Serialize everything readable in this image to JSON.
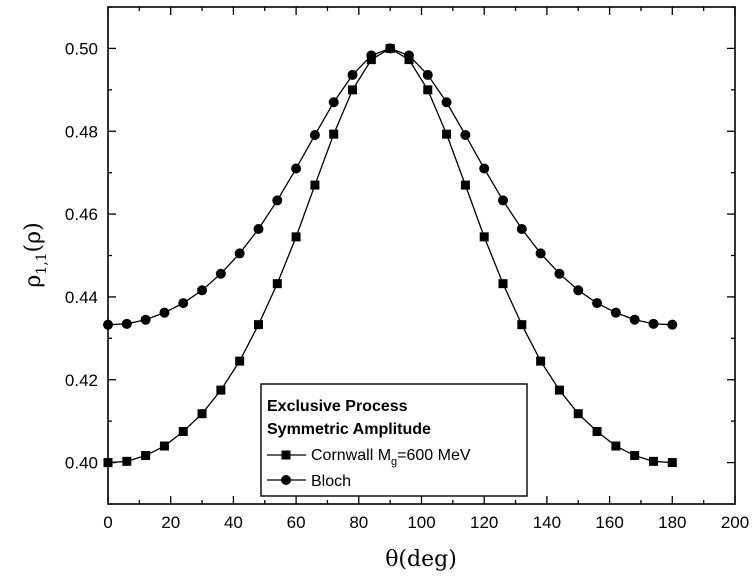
{
  "chart_data": {
    "type": "line",
    "xlabel": "θ(deg)",
    "ylabel": "ρ1,1(ρ)",
    "ylabel_parts": {
      "main": "ρ",
      "sub": "1,1",
      "rest": "(ρ)"
    },
    "xlim": [
      0,
      200
    ],
    "ylim": [
      0.39,
      0.51
    ],
    "xticks": [
      0,
      20,
      40,
      60,
      80,
      100,
      120,
      140,
      160,
      180,
      200
    ],
    "xtick_labels": [
      "0",
      "20",
      "40",
      "60",
      "80",
      "100",
      "120",
      "140",
      "160",
      "180",
      "200"
    ],
    "yticks": [
      0.4,
      0.42,
      0.44,
      0.46,
      0.48,
      0.5
    ],
    "ytick_labels": [
      "0.40",
      "0.42",
      "0.44",
      "0.46",
      "0.48",
      "0.50"
    ],
    "grid": false,
    "legend_placement": "bottom-center",
    "legend_header": [
      "Exclusive Process",
      "Symmetric Amplitude"
    ],
    "x": [
      0,
      6,
      12,
      18,
      24,
      30,
      36,
      42,
      48,
      54,
      60,
      66,
      72,
      78,
      84,
      90,
      96,
      102,
      108,
      114,
      120,
      126,
      132,
      138,
      144,
      150,
      156,
      162,
      168,
      174,
      180
    ],
    "series": [
      {
        "name": "Cornwall Mg=600 MeV",
        "name_parts": {
          "pre": "Cornwall M",
          "sub": "g",
          "post": "=600 MeV"
        },
        "marker": "square",
        "values": [
          0.4,
          0.4003,
          0.4017,
          0.404,
          0.4075,
          0.4118,
          0.4175,
          0.4245,
          0.4333,
          0.4432,
          0.4545,
          0.467,
          0.4793,
          0.49,
          0.4973,
          0.5,
          0.4973,
          0.49,
          0.4793,
          0.467,
          0.4545,
          0.4432,
          0.4333,
          0.4245,
          0.4175,
          0.4118,
          0.4075,
          0.404,
          0.4017,
          0.4003,
          0.4
        ]
      },
      {
        "name": "Bloch",
        "marker": "circle",
        "values": [
          0.4333,
          0.4335,
          0.4345,
          0.4362,
          0.4385,
          0.4416,
          0.4456,
          0.4505,
          0.4564,
          0.4633,
          0.471,
          0.4791,
          0.487,
          0.4936,
          0.4983,
          0.5,
          0.4983,
          0.4936,
          0.487,
          0.4791,
          0.471,
          0.4633,
          0.4564,
          0.4505,
          0.4456,
          0.4416,
          0.4385,
          0.4362,
          0.4345,
          0.4335,
          0.4333
        ]
      }
    ]
  }
}
